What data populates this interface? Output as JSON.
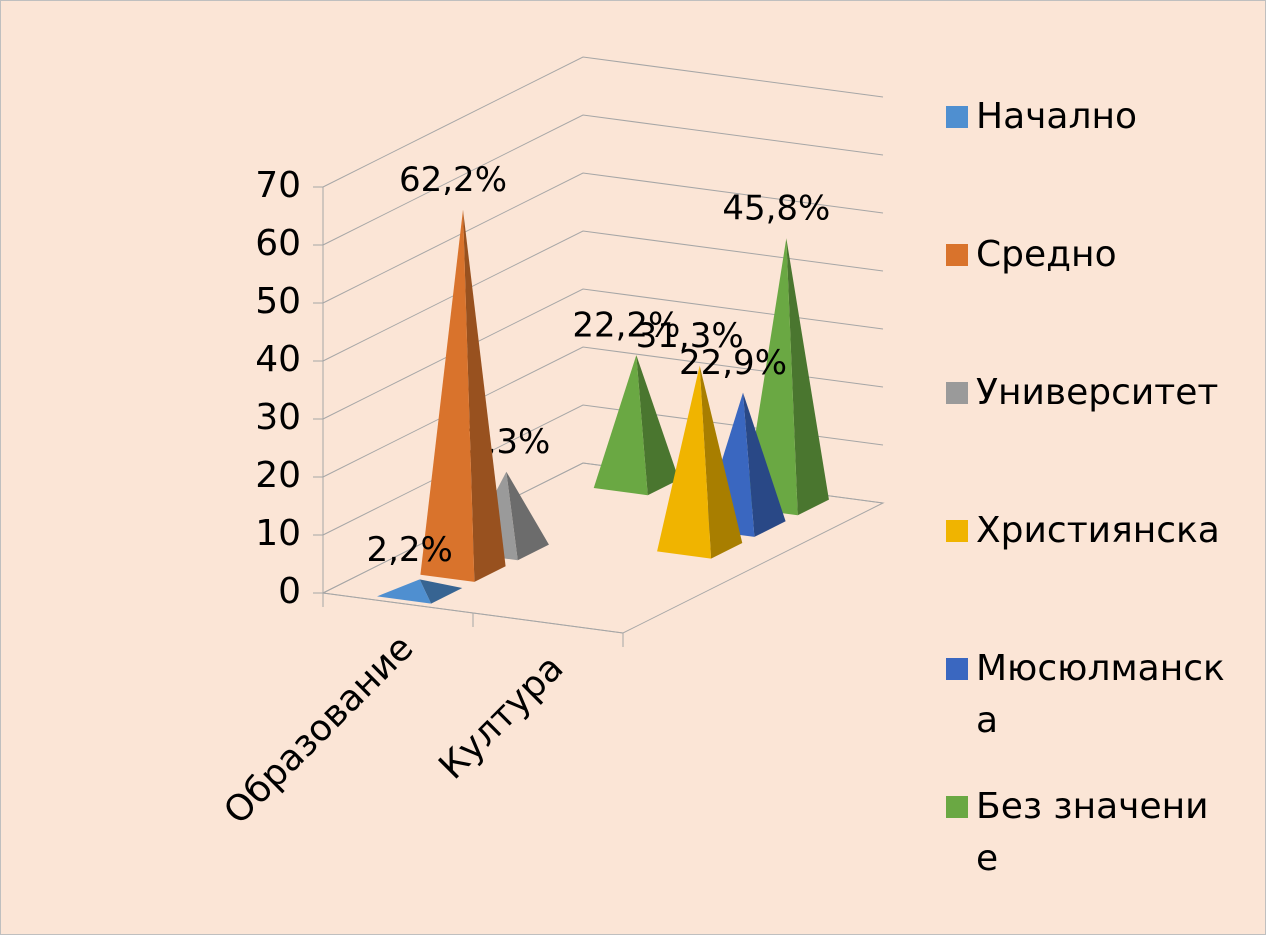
{
  "chart_data": {
    "type": "pyramid3d",
    "categories": [
      "Образование",
      "Култура"
    ],
    "series": [
      {
        "name": "Начално",
        "color": "#4f8fd0",
        "values": [
          2.2,
          null
        ],
        "value_labels": [
          "2,2%",
          null
        ]
      },
      {
        "name": "Средно",
        "color": "#d9732c",
        "values": [
          62.2,
          null
        ],
        "value_labels": [
          "62,2%",
          null
        ]
      },
      {
        "name": "Университет",
        "color": "#9a9a9a",
        "values": [
          13.3,
          null
        ],
        "value_labels": [
          "13,3%",
          null
        ]
      },
      {
        "name": "Християнска",
        "color": "#f0b400",
        "values": [
          null,
          31.3
        ],
        "value_labels": [
          null,
          "31,3%"
        ]
      },
      {
        "name": "Мюсюлманска",
        "color": "#3a67c0",
        "values": [
          null,
          22.9
        ],
        "value_labels": [
          null,
          "22,9%"
        ]
      },
      {
        "name": "Без значение",
        "color": "#6aa843",
        "values": [
          22.2,
          45.8
        ],
        "value_labels": [
          "22,2%",
          "45,8%"
        ]
      }
    ],
    "ylim": [
      0,
      70
    ],
    "yticks": [
      0,
      10,
      20,
      30,
      40,
      50,
      60,
      70
    ],
    "grid": true,
    "legend": "right"
  }
}
